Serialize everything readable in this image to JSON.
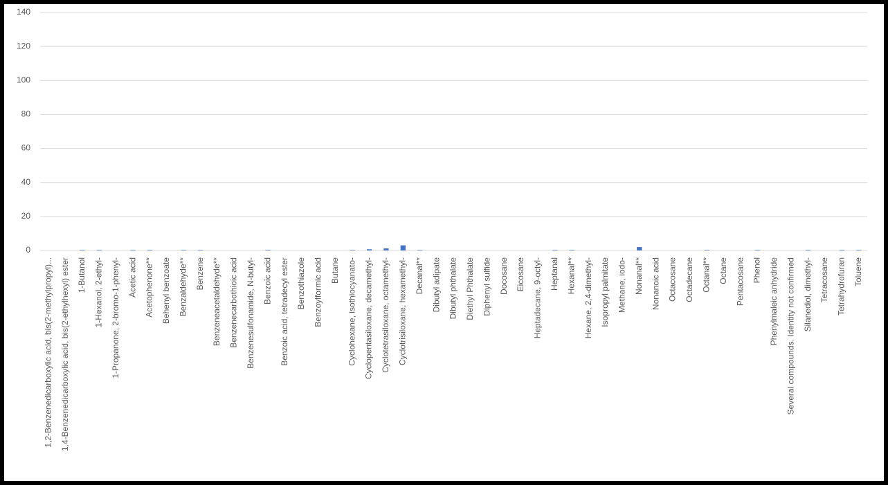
{
  "chart_data": {
    "type": "bar",
    "color": "#4472c4",
    "grid": true,
    "categories": [
      "1,2-Benzenedicarboxylic acid, bis(2-methylpropyl)...",
      "1,4-Benzenedicarboxylic acid, bis(2-ethylhexyl) ester",
      "1-Butanol",
      "1-Hexanol, 2-ethyl-",
      "1-Propanone, 2-bromo-1-phenyl-",
      "Acetic acid",
      "Acetophenone**",
      "Behenyl benzoate",
      "Benzaldehyde**",
      "Benzene",
      "Benzeneacetaldehyde**",
      "Benzenecarbothioic acid",
      "Benzenesulfonamide, N-butyl-",
      "Benzoic acid",
      "Benzoic acid, tetradecyl ester",
      "Benzothiazole",
      "Benzoylformic acid",
      "Butane",
      "Cyclohexane, isothiocyanato-",
      "Cyclopentasiloxane, decamethyl-",
      "Cyclotetrasiloxane, octamethyl-",
      "Cyclotrisiloxane, hexamethyl-",
      "Decanal**",
      "Dibutyl adipate",
      "Dibutyl phthalate",
      "Diethyl Phthalate",
      "Diphenyl sulfide",
      "Docosane",
      "Eicosane",
      "Heptadecane, 9-octyl-",
      "Heptanal",
      "Hexanal**",
      "Hexane, 2,4-dimethyl-",
      "Isopropyl palmitate",
      "Methane, iodo-",
      "Nonanal**",
      "Nonanoic acid",
      "Octacosane",
      "Octadecane",
      "Octanal**",
      "Octane",
      "Pentacosane",
      "Phenol",
      "Phenylmaleic anhydride",
      "Several compounds. Identity not confirmed",
      "Silanediol, dimethyl-",
      "Tetracosane",
      "Tetrahydrofuran",
      "Toluene"
    ],
    "values": [
      0,
      0,
      0.3,
      0.3,
      0,
      0.3,
      0.3,
      0,
      0.3,
      0.3,
      0,
      0,
      0,
      0.3,
      0,
      0,
      0,
      0,
      0.3,
      0.7,
      1.2,
      3,
      0.3,
      0,
      0,
      0,
      0,
      0,
      0,
      0,
      0.3,
      0.3,
      0,
      0,
      0,
      2,
      0,
      0,
      0,
      0.3,
      0,
      0,
      0.3,
      0,
      0,
      0.3,
      0,
      0.3,
      0.3
    ],
    "ylim": [
      0,
      140
    ],
    "yticks": [
      0,
      20,
      40,
      60,
      80,
      100,
      120,
      140
    ]
  }
}
